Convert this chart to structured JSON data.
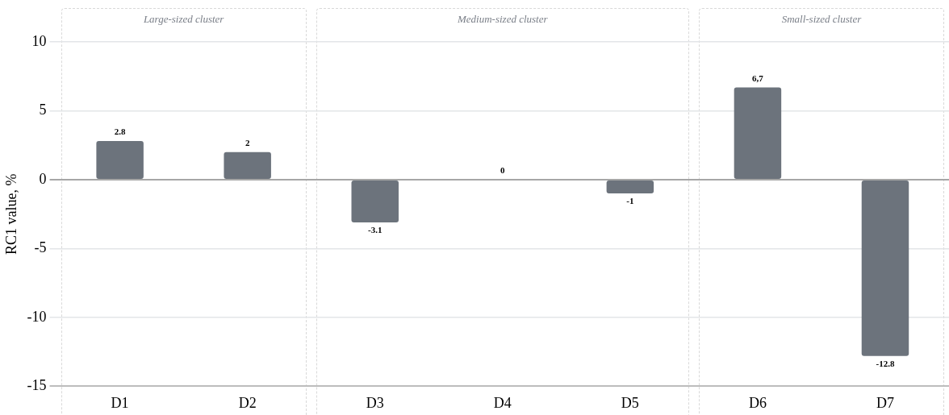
{
  "chart_data": {
    "type": "bar",
    "ylabel": "RC1 value, %",
    "categories": [
      "D1",
      "D2",
      "D3",
      "D4",
      "D5",
      "D6",
      "D7"
    ],
    "values": [
      2.8,
      2,
      -3.1,
      0,
      -1,
      6.7,
      -12.8
    ],
    "value_labels": [
      "2.8",
      "2",
      "-3.1",
      "0",
      "-1",
      "6,7",
      "-12.8"
    ],
    "color": "#6c737c",
    "ylim": [
      -15,
      10
    ],
    "yticks": [
      -15,
      -10,
      -5,
      0,
      5,
      10
    ],
    "grid": "y",
    "annotations": [
      "Large-sized cluster",
      "Medium-sized cluster",
      "Small-sized cluster"
    ],
    "legend": false
  }
}
